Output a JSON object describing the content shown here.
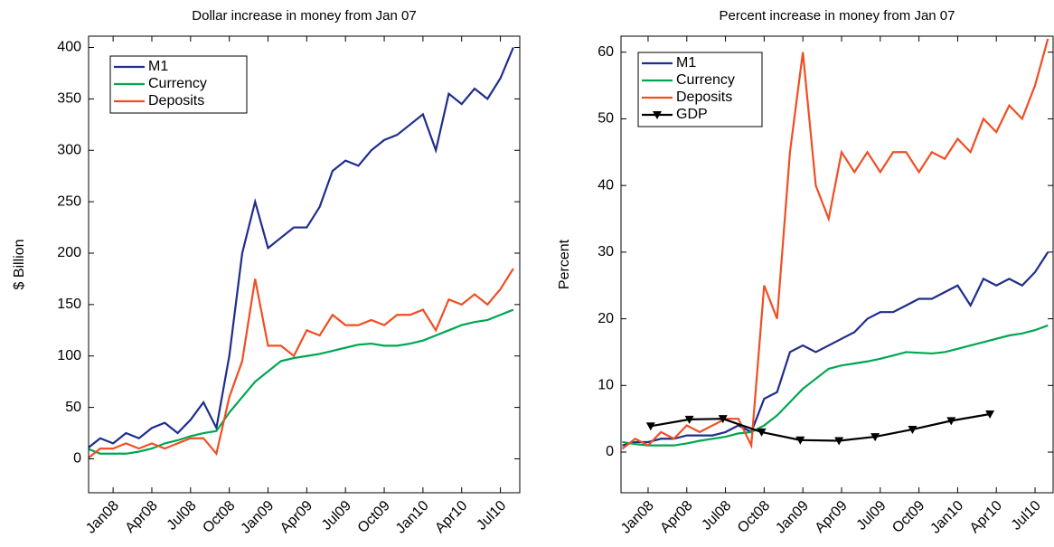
{
  "chart_data": [
    {
      "type": "line",
      "title": "Dollar increase in money from Jan 07",
      "ylabel": "$ Billion",
      "x": [
        -2,
        -1,
        0,
        1,
        2,
        3,
        4,
        5,
        6,
        7,
        8,
        9,
        10,
        11,
        12,
        13,
        14,
        15,
        16,
        17,
        18,
        19,
        20,
        21,
        22,
        23,
        24,
        25,
        26,
        27,
        28,
        29,
        30,
        31
      ],
      "series": [
        {
          "name": "M1",
          "color": "#1f2d8c",
          "values": [
            10,
            20,
            15,
            25,
            20,
            30,
            35,
            25,
            38,
            55,
            30,
            100,
            200,
            250,
            205,
            215,
            225,
            225,
            245,
            280,
            290,
            285,
            300,
            310,
            315,
            325,
            335,
            300,
            355,
            345,
            360,
            350,
            370,
            400
          ]
        },
        {
          "name": "Currency",
          "color": "#00a651",
          "values": [
            10,
            5,
            5,
            5,
            7,
            10,
            15,
            18,
            22,
            25,
            27,
            45,
            60,
            75,
            85,
            95,
            98,
            100,
            102,
            105,
            108,
            111,
            112,
            110,
            110,
            112,
            115,
            120,
            125,
            130,
            133,
            135,
            140,
            145
          ]
        },
        {
          "name": "Deposits",
          "color": "#f04e23",
          "values": [
            0,
            10,
            10,
            15,
            10,
            15,
            10,
            15,
            20,
            20,
            5,
            60,
            95,
            175,
            110,
            110,
            100,
            125,
            120,
            140,
            130,
            130,
            135,
            130,
            140,
            140,
            145,
            125,
            155,
            150,
            160,
            150,
            165,
            185
          ]
        }
      ],
      "xlim": [
        -1.9,
        31.5
      ],
      "ylim": [
        -33,
        411
      ],
      "xticks": [
        {
          "value": 0,
          "label": "Jan08"
        },
        {
          "value": 3,
          "label": "Apr08"
        },
        {
          "value": 6,
          "label": "Jul08"
        },
        {
          "value": 9,
          "label": "Oct08"
        },
        {
          "value": 12,
          "label": "Jan09"
        },
        {
          "value": 15,
          "label": "Apr09"
        },
        {
          "value": 18,
          "label": "Jul09"
        },
        {
          "value": 21,
          "label": "Oct09"
        },
        {
          "value": 24,
          "label": "Jan10"
        },
        {
          "value": 27,
          "label": "Apr10"
        },
        {
          "value": 30,
          "label": "Jul10"
        }
      ],
      "yticks": [
        0,
        50,
        100,
        150,
        200,
        250,
        300,
        350,
        400
      ],
      "legend": "upper left"
    },
    {
      "type": "line",
      "title": "Percent increase in money from Jan 07",
      "ylabel": "Percent",
      "x": [
        -2,
        -1,
        0,
        1,
        2,
        3,
        4,
        5,
        6,
        7,
        8,
        9,
        10,
        11,
        12,
        13,
        14,
        15,
        16,
        17,
        18,
        19,
        20,
        21,
        22,
        23,
        24,
        25,
        26,
        27,
        28,
        29,
        30,
        31
      ],
      "series": [
        {
          "name": "M1",
          "color": "#1f2d8c",
          "values": [
            1,
            1.5,
            1.5,
            2,
            2,
            2.5,
            2.5,
            2.5,
            3,
            4,
            3,
            8,
            9,
            15,
            16,
            15,
            16,
            17,
            18,
            20,
            21,
            21,
            22,
            23,
            23,
            24,
            25,
            22,
            26,
            25,
            26,
            25,
            27,
            30
          ]
        },
        {
          "name": "Currency",
          "color": "#00a651",
          "values": [
            1.5,
            1.2,
            1,
            1,
            1,
            1.3,
            1.7,
            2,
            2.3,
            2.8,
            3,
            4,
            5.5,
            7.5,
            9.5,
            11,
            12.5,
            13,
            13.3,
            13.6,
            14,
            14.5,
            15,
            14.9,
            14.8,
            15,
            15.5,
            16,
            16.5,
            17,
            17.5,
            17.8,
            18.3,
            19
          ]
        },
        {
          "name": "Deposits",
          "color": "#f04e23",
          "values": [
            0.5,
            2,
            1,
            3,
            2,
            4,
            3,
            4,
            5,
            5,
            1,
            25,
            20,
            45,
            60,
            40,
            35,
            45,
            42,
            45,
            42,
            45,
            45,
            42,
            45,
            44,
            47,
            45,
            50,
            48,
            52,
            50,
            55,
            62
          ]
        },
        {
          "name": "GDP",
          "color": "#000000",
          "marker": "v",
          "x": [
            0.2,
            3.2,
            5.8,
            8.8,
            11.8,
            14.8,
            17.6,
            20.5,
            23.5,
            26.5
          ],
          "values": [
            3.9,
            4.9,
            5,
            3,
            1.8,
            1.7,
            2.3,
            3.4,
            4.7,
            5.7
          ]
        }
      ],
      "xlim": [
        -2.1,
        31.4
      ],
      "ylim": [
        -6.1,
        62.4
      ],
      "xticks": [
        {
          "value": 0,
          "label": "Jan08"
        },
        {
          "value": 3,
          "label": "Apr08"
        },
        {
          "value": 6,
          "label": "Jul08"
        },
        {
          "value": 9,
          "label": "Oct08"
        },
        {
          "value": 12,
          "label": "Jan09"
        },
        {
          "value": 15,
          "label": "Apr09"
        },
        {
          "value": 18,
          "label": "Jul09"
        },
        {
          "value": 21,
          "label": "Oct09"
        },
        {
          "value": 24,
          "label": "Jan10"
        },
        {
          "value": 27,
          "label": "Apr10"
        },
        {
          "value": 30,
          "label": "Jul10"
        }
      ],
      "yticks": [
        0,
        10,
        20,
        30,
        40,
        50,
        60
      ],
      "legend": "upper left"
    }
  ]
}
